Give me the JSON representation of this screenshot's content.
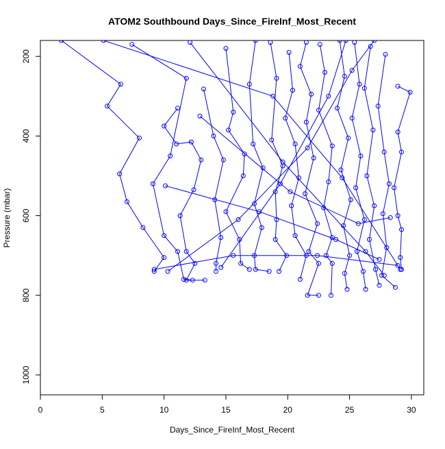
{
  "chart_data": {
    "type": "line",
    "title": "ATOM2 Southbound Days_Since_FireInf_Most_Recent",
    "xlabel": "Days_Since_FireInf_Most_Recent",
    "ylabel": "Pressure (mbar)",
    "xlim": [
      0,
      31
    ],
    "ylim": [
      1050,
      160
    ],
    "y_reversed": true,
    "grid": false,
    "legend": "none",
    "x_ticks": [
      0,
      5,
      10,
      15,
      20,
      25,
      30
    ],
    "y_ticks": [
      200,
      400,
      600,
      800,
      1000
    ],
    "x_tick_labels": [
      "0",
      "5",
      "10",
      "15",
      "20",
      "25",
      "30"
    ],
    "y_tick_labels": [
      "200",
      "400",
      "600",
      "800",
      "1000"
    ],
    "series": [
      {
        "color": "#0000ff",
        "marker": "open-circle",
        "points": [
          [
            1.7,
            160
          ],
          [
            6.5,
            270
          ],
          [
            5.4,
            325
          ],
          [
            8.0,
            405
          ],
          [
            6.4,
            495
          ],
          [
            7.0,
            565
          ],
          [
            8.3,
            630
          ],
          [
            10.0,
            705
          ],
          [
            9.2,
            740
          ]
        ]
      },
      {
        "color": "#0000ff",
        "marker": "open-circle",
        "points": [
          [
            7.4,
            170
          ],
          [
            11.8,
            255
          ],
          [
            10.5,
            450
          ],
          [
            9.1,
            520
          ],
          [
            10.0,
            650
          ],
          [
            11.1,
            690
          ],
          [
            11.6,
            760
          ],
          [
            12.3,
            762
          ]
        ]
      },
      {
        "color": "#0000ff",
        "marker": "open-circle",
        "points": [
          [
            11.1,
            330
          ],
          [
            10.0,
            375
          ],
          [
            11.0,
            420
          ],
          [
            12.2,
            415
          ],
          [
            13.0,
            460
          ],
          [
            12.4,
            535
          ],
          [
            11.3,
            600
          ],
          [
            11.8,
            690
          ],
          [
            12.5,
            720
          ],
          [
            11.8,
            762
          ],
          [
            13.3,
            762
          ]
        ]
      },
      {
        "color": "#0000ff",
        "marker": "open-circle",
        "points": [
          [
            13.2,
            282
          ],
          [
            14.0,
            400
          ],
          [
            14.8,
            460
          ],
          [
            14.1,
            560
          ],
          [
            14.6,
            655
          ],
          [
            14.2,
            720
          ],
          [
            14.2,
            740
          ]
        ]
      },
      {
        "color": "#0000ff",
        "marker": "open-circle",
        "points": [
          [
            15.0,
            180
          ],
          [
            15.6,
            340
          ],
          [
            15.2,
            385
          ],
          [
            16.5,
            445
          ],
          [
            16.4,
            500
          ],
          [
            15.0,
            590
          ],
          [
            16.1,
            660
          ],
          [
            16.2,
            720
          ],
          [
            16.9,
            735
          ]
        ]
      },
      {
        "color": "#0000ff",
        "marker": "open-circle",
        "points": [
          [
            17.4,
            160
          ],
          [
            16.9,
            270
          ],
          [
            17.2,
            420
          ],
          [
            18.0,
            480
          ],
          [
            17.3,
            570
          ],
          [
            17.9,
            630
          ],
          [
            17.3,
            700
          ],
          [
            17.4,
            735
          ],
          [
            18.5,
            740
          ]
        ]
      },
      {
        "color": "#0000ff",
        "marker": "open-circle",
        "points": [
          [
            18.6,
            165
          ],
          [
            19.1,
            255
          ],
          [
            18.7,
            410
          ],
          [
            19.6,
            475
          ],
          [
            19.0,
            540
          ],
          [
            19.1,
            610
          ],
          [
            19.0,
            660
          ],
          [
            19.9,
            700
          ],
          [
            19.3,
            740
          ]
        ]
      },
      {
        "color": "#0000ff",
        "marker": "open-circle",
        "points": [
          [
            20.1,
            190
          ],
          [
            20.4,
            285
          ],
          [
            19.8,
            355
          ],
          [
            20.6,
            420
          ],
          [
            20.9,
            505
          ],
          [
            20.3,
            575
          ],
          [
            20.6,
            650
          ],
          [
            21.5,
            700
          ],
          [
            21.0,
            760
          ]
        ]
      },
      {
        "color": "#0000ff",
        "marker": "open-circle",
        "points": [
          [
            21.5,
            165
          ],
          [
            21.0,
            225
          ],
          [
            21.9,
            295
          ],
          [
            21.5,
            365
          ],
          [
            22.1,
            455
          ],
          [
            21.4,
            545
          ],
          [
            22.4,
            620
          ],
          [
            21.7,
            690
          ],
          [
            22.5,
            720
          ],
          [
            21.6,
            800
          ],
          [
            22.5,
            800
          ]
        ]
      },
      {
        "color": "#0000ff",
        "marker": "open-circle",
        "points": [
          [
            22.6,
            170
          ],
          [
            23.0,
            240
          ],
          [
            22.5,
            335
          ],
          [
            23.6,
            425
          ],
          [
            23.3,
            515
          ],
          [
            22.9,
            580
          ],
          [
            23.6,
            655
          ],
          [
            23.1,
            700
          ],
          [
            23.6,
            720
          ],
          [
            23.5,
            800
          ]
        ]
      },
      {
        "color": "#0000ff",
        "marker": "open-circle",
        "points": [
          [
            24.2,
            160
          ],
          [
            24.6,
            250
          ],
          [
            24.0,
            330
          ],
          [
            24.9,
            405
          ],
          [
            24.3,
            485
          ],
          [
            25.1,
            560
          ],
          [
            24.5,
            625
          ],
          [
            25.0,
            700
          ],
          [
            24.6,
            745
          ],
          [
            24.8,
            785
          ]
        ]
      },
      {
        "color": "#0000ff",
        "marker": "open-circle",
        "points": [
          [
            25.4,
            165
          ],
          [
            25.8,
            270
          ],
          [
            25.2,
            355
          ],
          [
            25.9,
            450
          ],
          [
            25.5,
            530
          ],
          [
            26.2,
            610
          ],
          [
            25.6,
            690
          ],
          [
            26.1,
            740
          ],
          [
            26.3,
            785
          ]
        ]
      },
      {
        "color": "#0000ff",
        "marker": "open-circle",
        "points": [
          [
            26.7,
            175
          ],
          [
            26.2,
            280
          ],
          [
            26.9,
            385
          ],
          [
            26.4,
            500
          ],
          [
            27.0,
            575
          ],
          [
            26.6,
            660
          ],
          [
            27.1,
            735
          ],
          [
            27.4,
            775
          ]
        ]
      },
      {
        "color": "#0000ff",
        "marker": "open-circle",
        "points": [
          [
            27.9,
            195
          ],
          [
            27.3,
            325
          ],
          [
            27.8,
            440
          ],
          [
            28.2,
            520
          ],
          [
            27.7,
            595
          ],
          [
            28.0,
            680
          ],
          [
            27.6,
            750
          ],
          [
            28.7,
            780
          ]
        ]
      },
      {
        "color": "#0000ff",
        "marker": "open-circle",
        "points": [
          [
            28.9,
            275
          ],
          [
            29.9,
            290
          ],
          [
            28.9,
            390
          ],
          [
            29.2,
            440
          ],
          [
            28.6,
            530
          ],
          [
            28.9,
            600
          ],
          [
            29.2,
            635
          ],
          [
            29.1,
            705
          ],
          [
            29.2,
            735
          ]
        ]
      },
      {
        "color": "#0000ff",
        "marker": "open-circle",
        "points": [
          [
            5.1,
            160
          ],
          [
            18.8,
            300
          ],
          [
            24.4,
            505
          ],
          [
            29.1,
            735
          ]
        ]
      },
      {
        "color": "#0000ff",
        "marker": "open-circle",
        "points": [
          [
            10.3,
            740
          ],
          [
            16.0,
            610
          ],
          [
            21.6,
            430
          ],
          [
            25.2,
            235
          ],
          [
            27.0,
            160
          ]
        ]
      },
      {
        "color": "#0000ff",
        "marker": "open-circle",
        "points": [
          [
            12.1,
            165
          ],
          [
            19.6,
            465
          ],
          [
            26.3,
            690
          ],
          [
            27.8,
            750
          ]
        ]
      },
      {
        "color": "#0000ff",
        "marker": "open-circle",
        "points": [
          [
            14.6,
            730
          ],
          [
            19.4,
            520
          ],
          [
            23.3,
            300
          ],
          [
            24.7,
            160
          ]
        ]
      },
      {
        "color": "#0000ff",
        "marker": "open-circle",
        "points": [
          [
            9.2,
            735
          ],
          [
            15.6,
            700
          ],
          [
            22.4,
            700
          ],
          [
            28.9,
            725
          ]
        ]
      },
      {
        "color": "#0000ff",
        "marker": "open-circle",
        "points": [
          [
            10.1,
            525
          ],
          [
            17.7,
            590
          ],
          [
            23.9,
            660
          ],
          [
            27.4,
            710
          ]
        ]
      },
      {
        "color": "#0000ff",
        "marker": "open-circle",
        "points": [
          [
            12.9,
            350
          ],
          [
            20.2,
            540
          ],
          [
            25.7,
            620
          ],
          [
            28.3,
            605
          ]
        ]
      }
    ]
  }
}
